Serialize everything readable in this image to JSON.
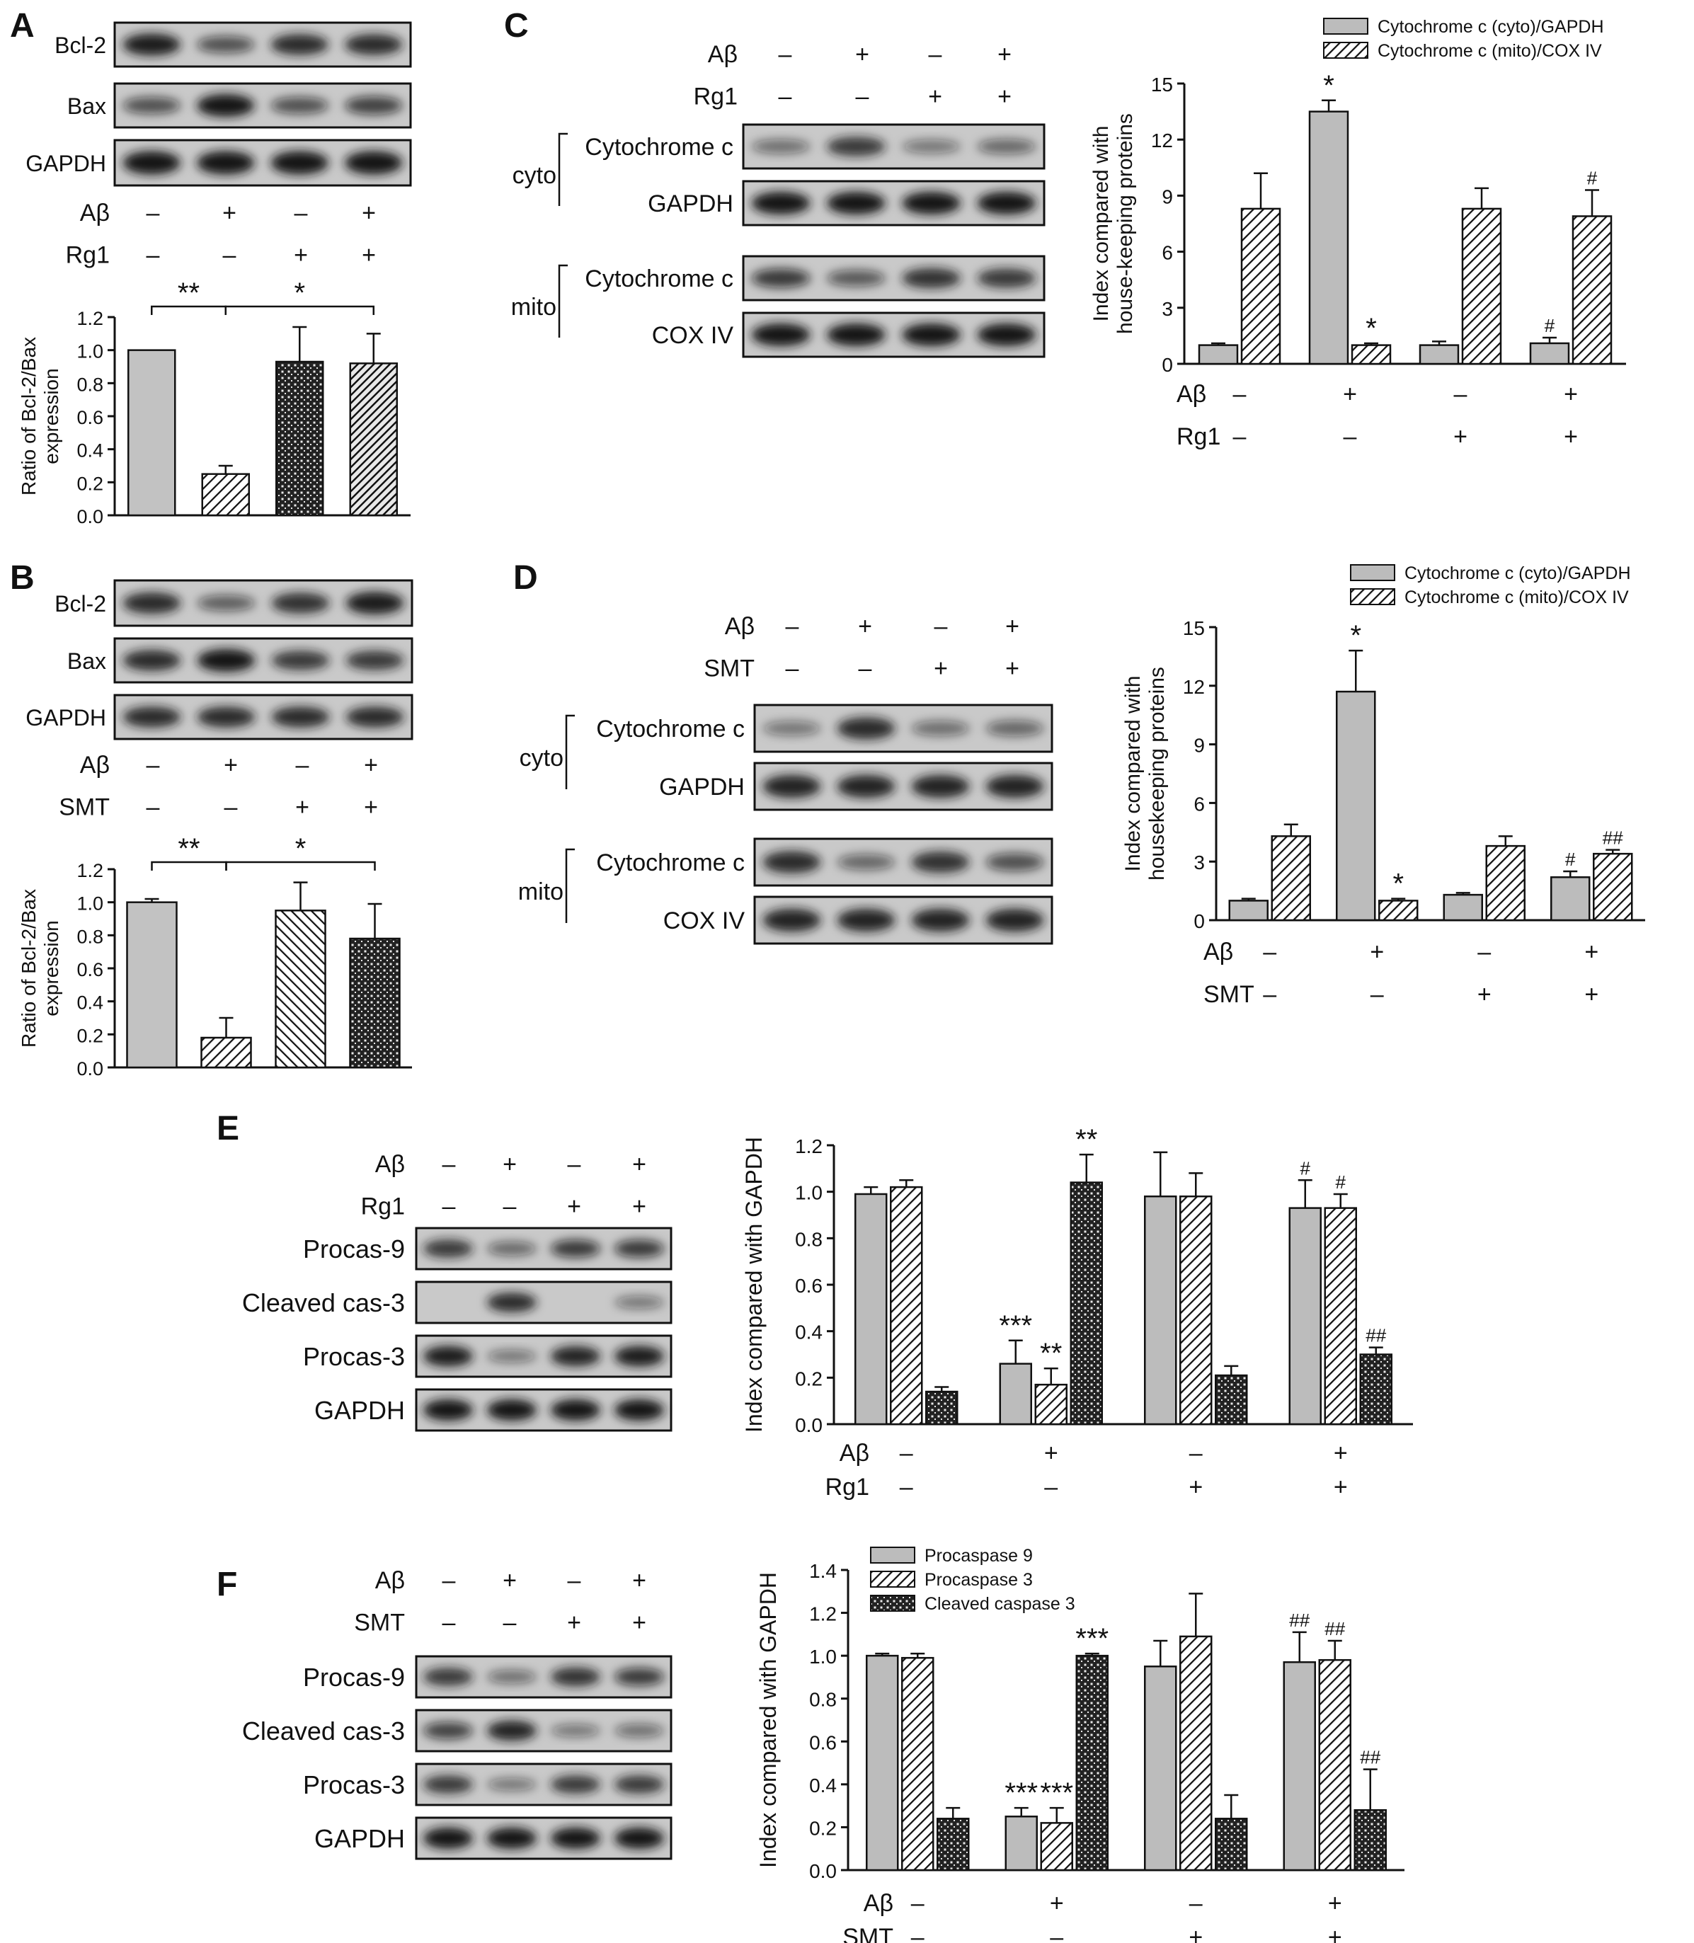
{
  "panels": {
    "A": {
      "letter": "A",
      "blot": {
        "proteins": [
          "Bcl-2",
          "Bax",
          "GAPDH"
        ]
      },
      "conditions": [
        {
          "label": "Aβ",
          "signs": [
            "–",
            "+",
            "–",
            "+"
          ]
        },
        {
          "label": "Rg1",
          "signs": [
            "–",
            "–",
            "+",
            "+"
          ]
        }
      ],
      "sig": {
        "left": "**",
        "right": "*"
      }
    },
    "B": {
      "letter": "B",
      "blot": {
        "proteins": [
          "Bcl-2",
          "Bax",
          "GAPDH"
        ]
      },
      "conditions": [
        {
          "label": "Aβ",
          "signs": [
            "–",
            "+",
            "–",
            "+"
          ]
        },
        {
          "label": "SMT",
          "signs": [
            "–",
            "–",
            "+",
            "+"
          ]
        }
      ],
      "sig": {
        "left": "**",
        "right": "*"
      }
    },
    "C": {
      "letter": "C",
      "conditions": [
        {
          "label": "Aβ",
          "signs": [
            "–",
            "+",
            "–",
            "+"
          ]
        },
        {
          "label": "Rg1",
          "signs": [
            "–",
            "–",
            "+",
            "+"
          ]
        }
      ],
      "groups": [
        {
          "label": "cyto",
          "proteins": [
            "Cytochrome c",
            "GAPDH"
          ]
        },
        {
          "label": "mito",
          "proteins": [
            "Cytochrome c",
            "COX IV"
          ]
        }
      ],
      "chart_conditions": [
        {
          "label": "Aβ",
          "signs": [
            "–",
            "+",
            "–",
            "+"
          ]
        },
        {
          "label": "Rg1",
          "signs": [
            "–",
            "–",
            "+",
            "+"
          ]
        }
      ]
    },
    "D": {
      "letter": "D",
      "conditions": [
        {
          "label": "Aβ",
          "signs": [
            "–",
            "+",
            "–",
            "+"
          ]
        },
        {
          "label": "SMT",
          "signs": [
            "–",
            "–",
            "+",
            "+"
          ]
        }
      ],
      "groups": [
        {
          "label": "cyto",
          "proteins": [
            "Cytochrome c",
            "GAPDH"
          ]
        },
        {
          "label": "mito",
          "proteins": [
            "Cytochrome c",
            "COX IV"
          ]
        }
      ],
      "chart_conditions": [
        {
          "label": "Aβ",
          "signs": [
            "–",
            "+",
            "–",
            "+"
          ]
        },
        {
          "label": "SMT",
          "signs": [
            "–",
            "–",
            "+",
            "+"
          ]
        }
      ]
    },
    "E": {
      "letter": "E",
      "conditions": [
        {
          "label": "Aβ",
          "signs": [
            "–",
            "+",
            "–",
            "+"
          ]
        },
        {
          "label": "Rg1",
          "signs": [
            "–",
            "–",
            "+",
            "+"
          ]
        }
      ],
      "blot": {
        "proteins": [
          "Procas-9",
          "Cleaved cas-3",
          "Procas-3",
          "GAPDH"
        ]
      },
      "chart_conditions": [
        {
          "label": "Aβ",
          "signs": [
            "–",
            "+",
            "–",
            "+"
          ]
        },
        {
          "label": "Rg1",
          "signs": [
            "–",
            "–",
            "+",
            "+"
          ]
        }
      ]
    },
    "F": {
      "letter": "F",
      "conditions": [
        {
          "label": "Aβ",
          "signs": [
            "–",
            "+",
            "–",
            "+"
          ]
        },
        {
          "label": "SMT",
          "signs": [
            "–",
            "–",
            "+",
            "+"
          ]
        }
      ],
      "blot": {
        "proteins": [
          "Procas-9",
          "Cleaved cas-3",
          "Procas-3",
          "GAPDH"
        ]
      },
      "chart_conditions": [
        {
          "label": "Aβ",
          "signs": [
            "–",
            "+",
            "–",
            "+"
          ]
        },
        {
          "label": "SMT",
          "signs": [
            "–",
            "–",
            "+",
            "+"
          ]
        }
      ]
    }
  },
  "chart_data": [
    {
      "id": "A",
      "type": "bar",
      "ylabel": "Ratio of Bcl-2/Bax expression",
      "ylim": [
        0,
        1.2
      ],
      "yticks": [
        "0.0",
        "0.2",
        "0.4",
        "0.6",
        "0.8",
        "1.0",
        "1.2"
      ],
      "series": [
        {
          "values": [
            1.0,
            0.25,
            0.93,
            0.92
          ],
          "errors": [
            0,
            0.05,
            0.21,
            0.18
          ]
        }
      ]
    },
    {
      "id": "B",
      "type": "bar",
      "ylabel": "Ratio of Bcl-2/Bax expression",
      "ylim": [
        0,
        1.2
      ],
      "yticks": [
        "0.0",
        "0.2",
        "0.4",
        "0.6",
        "0.8",
        "1.0",
        "1.2"
      ],
      "series": [
        {
          "values": [
            1.0,
            0.18,
            0.95,
            0.78
          ],
          "errors": [
            0.02,
            0.12,
            0.17,
            0.21
          ]
        }
      ]
    },
    {
      "id": "C",
      "type": "bar",
      "ylabel": "Index compared with house-keeping proteins",
      "ylim": [
        0,
        15
      ],
      "yticks": [
        "0",
        "3",
        "6",
        "9",
        "12",
        "15"
      ],
      "legend": [
        "Cytochrome c (cyto)/GAPDH",
        "Cytochrome c (mito)/COX IV"
      ],
      "series": [
        {
          "name": "Cytochrome c (cyto)/GAPDH",
          "values": [
            1.0,
            13.5,
            1.0,
            1.1
          ],
          "errors": [
            0.1,
            0.6,
            0.2,
            0.3
          ],
          "labels": [
            "",
            "*",
            "",
            "#"
          ]
        },
        {
          "name": "Cytochrome c (mito)/COX IV",
          "values": [
            8.3,
            1.0,
            8.3,
            7.9
          ],
          "errors": [
            1.9,
            0.1,
            1.1,
            1.4
          ],
          "labels": [
            "",
            "*",
            "",
            "#"
          ]
        }
      ]
    },
    {
      "id": "D",
      "type": "bar",
      "ylabel": "Index compared with housekeeping proteins",
      "ylim": [
        0,
        15
      ],
      "yticks": [
        "0",
        "3",
        "6",
        "9",
        "12",
        "15"
      ],
      "legend": [
        "Cytochrome c (cyto)/GAPDH",
        "Cytochrome c (mito)/COX IV"
      ],
      "series": [
        {
          "name": "Cytochrome c (cyto)/GAPDH",
          "values": [
            1.0,
            11.7,
            1.3,
            2.2
          ],
          "errors": [
            0.1,
            2.1,
            0.1,
            0.3
          ],
          "labels": [
            "",
            "*",
            "",
            "#"
          ]
        },
        {
          "name": "Cytochrome c (mito)/COX IV",
          "values": [
            4.3,
            1.0,
            3.8,
            3.4
          ],
          "errors": [
            0.6,
            0.1,
            0.5,
            0.2
          ],
          "labels": [
            "",
            "*",
            "",
            "##"
          ]
        }
      ]
    },
    {
      "id": "E",
      "type": "bar",
      "ylabel": "Index compared with GAPDH",
      "ylim": [
        0,
        1.2
      ],
      "yticks": [
        "0.0",
        "0.2",
        "0.4",
        "0.6",
        "0.8",
        "1.0",
        "1.2"
      ],
      "series": [
        {
          "name": "Procaspase 9",
          "values": [
            0.99,
            0.26,
            0.98,
            0.93
          ],
          "errors": [
            0.03,
            0.1,
            0.19,
            0.12
          ],
          "labels": [
            "",
            "***",
            "",
            "#"
          ]
        },
        {
          "name": "Procaspase 3",
          "values": [
            1.02,
            0.17,
            0.98,
            0.93
          ],
          "errors": [
            0.03,
            0.07,
            0.1,
            0.06
          ],
          "labels": [
            "",
            "**",
            "",
            "#"
          ]
        },
        {
          "name": "Cleaved caspase 3",
          "values": [
            0.14,
            1.04,
            0.21,
            0.3
          ],
          "errors": [
            0.02,
            0.12,
            0.04,
            0.03
          ],
          "labels": [
            "",
            "**",
            "",
            "##"
          ]
        }
      ]
    },
    {
      "id": "F",
      "type": "bar",
      "ylabel": "Index compared with GAPDH",
      "ylim": [
        0,
        1.4
      ],
      "yticks": [
        "0.0",
        "0.2",
        "0.4",
        "0.6",
        "0.8",
        "1.0",
        "1.2",
        "1.4"
      ],
      "legend": [
        "Procaspase 9",
        "Procaspase 3",
        "Cleaved caspase 3"
      ],
      "series": [
        {
          "name": "Procaspase 9",
          "values": [
            1.0,
            0.25,
            0.95,
            0.97
          ],
          "errors": [
            0.01,
            0.04,
            0.12,
            0.14
          ],
          "labels": [
            "",
            "***",
            "",
            "##"
          ]
        },
        {
          "name": "Procaspase 3",
          "values": [
            0.99,
            0.22,
            1.09,
            0.98
          ],
          "errors": [
            0.02,
            0.07,
            0.2,
            0.09
          ],
          "labels": [
            "",
            "***",
            "",
            "##"
          ]
        },
        {
          "name": "Cleaved caspase 3",
          "values": [
            0.24,
            1.0,
            0.24,
            0.28
          ],
          "errors": [
            0.05,
            0.01,
            0.11,
            0.19
          ],
          "labels": [
            "",
            "***",
            "",
            "##"
          ]
        }
      ]
    }
  ],
  "colors": {
    "axis": "#111111",
    "bar_light": "#b7b7b7",
    "bar_dark": "#3a3a3a",
    "blot_bg": "#c9c9c9",
    "band": "#151515"
  }
}
